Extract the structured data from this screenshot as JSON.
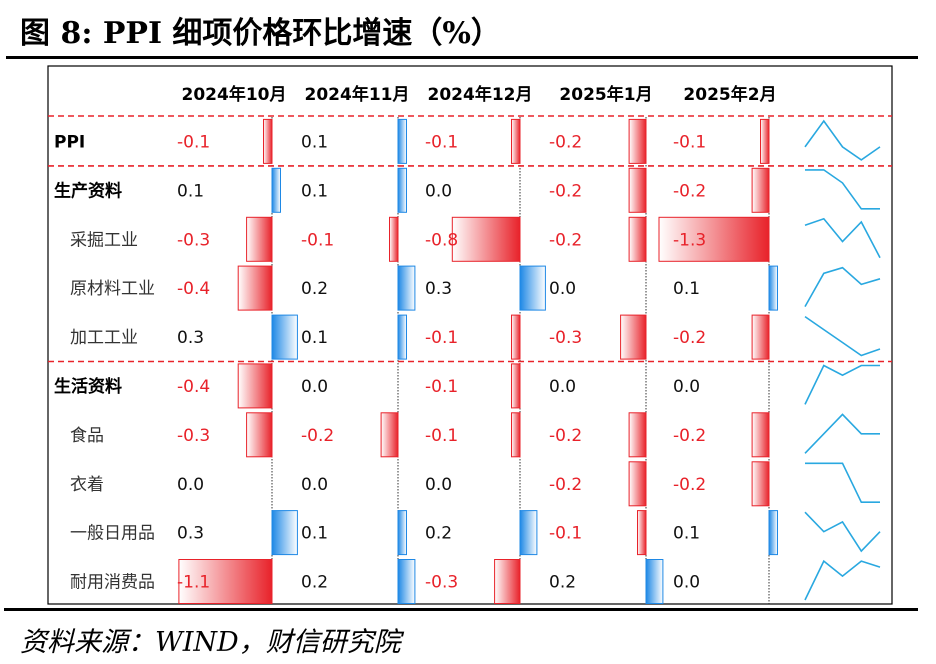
{
  "figure": {
    "title": "图 8:  PPI 细项价格环比增速（%）",
    "source": "资料来源：WIND，财信研究院"
  },
  "colors": {
    "negative": "#e8222a",
    "positive": "#1e88e5",
    "sparkline": "#29a8e0",
    "divider": "#e8222a"
  },
  "chart_data": {
    "type": "table",
    "columns": [
      "2024年10月",
      "2024年11月",
      "2024年12月",
      "2025年1月",
      "2025年2月"
    ],
    "rows": [
      {
        "label": "PPI",
        "indent": false,
        "values": [
          -0.1,
          0.1,
          -0.1,
          -0.2,
          -0.1
        ]
      },
      {
        "label": "生产资料",
        "indent": false,
        "values": [
          0.1,
          0.1,
          0.0,
          -0.2,
          -0.2
        ]
      },
      {
        "label": "采掘工业",
        "indent": true,
        "values": [
          -0.3,
          -0.1,
          -0.8,
          -0.2,
          -1.3
        ]
      },
      {
        "label": "原材料工业",
        "indent": true,
        "values": [
          -0.4,
          0.2,
          0.3,
          0.0,
          0.1
        ]
      },
      {
        "label": "加工工业",
        "indent": true,
        "values": [
          0.3,
          0.1,
          -0.1,
          -0.3,
          -0.2
        ]
      },
      {
        "label": "生活资料",
        "indent": false,
        "values": [
          -0.4,
          0.0,
          -0.1,
          0.0,
          0.0
        ]
      },
      {
        "label": "食品",
        "indent": true,
        "values": [
          -0.3,
          -0.2,
          -0.1,
          -0.2,
          -0.2
        ]
      },
      {
        "label": "衣着",
        "indent": true,
        "values": [
          0.0,
          0.0,
          0.0,
          -0.2,
          -0.2
        ]
      },
      {
        "label": "一般日用品",
        "indent": true,
        "values": [
          0.3,
          0.1,
          0.2,
          -0.1,
          0.1
        ]
      },
      {
        "label": "耐用消费品",
        "indent": true,
        "values": [
          -1.1,
          0.2,
          -0.3,
          0.2,
          0.0
        ]
      }
    ],
    "data_bar_scale_max_abs": 1.3,
    "sparklines": true,
    "section_dividers_after_rows": [
      0,
      4
    ]
  }
}
